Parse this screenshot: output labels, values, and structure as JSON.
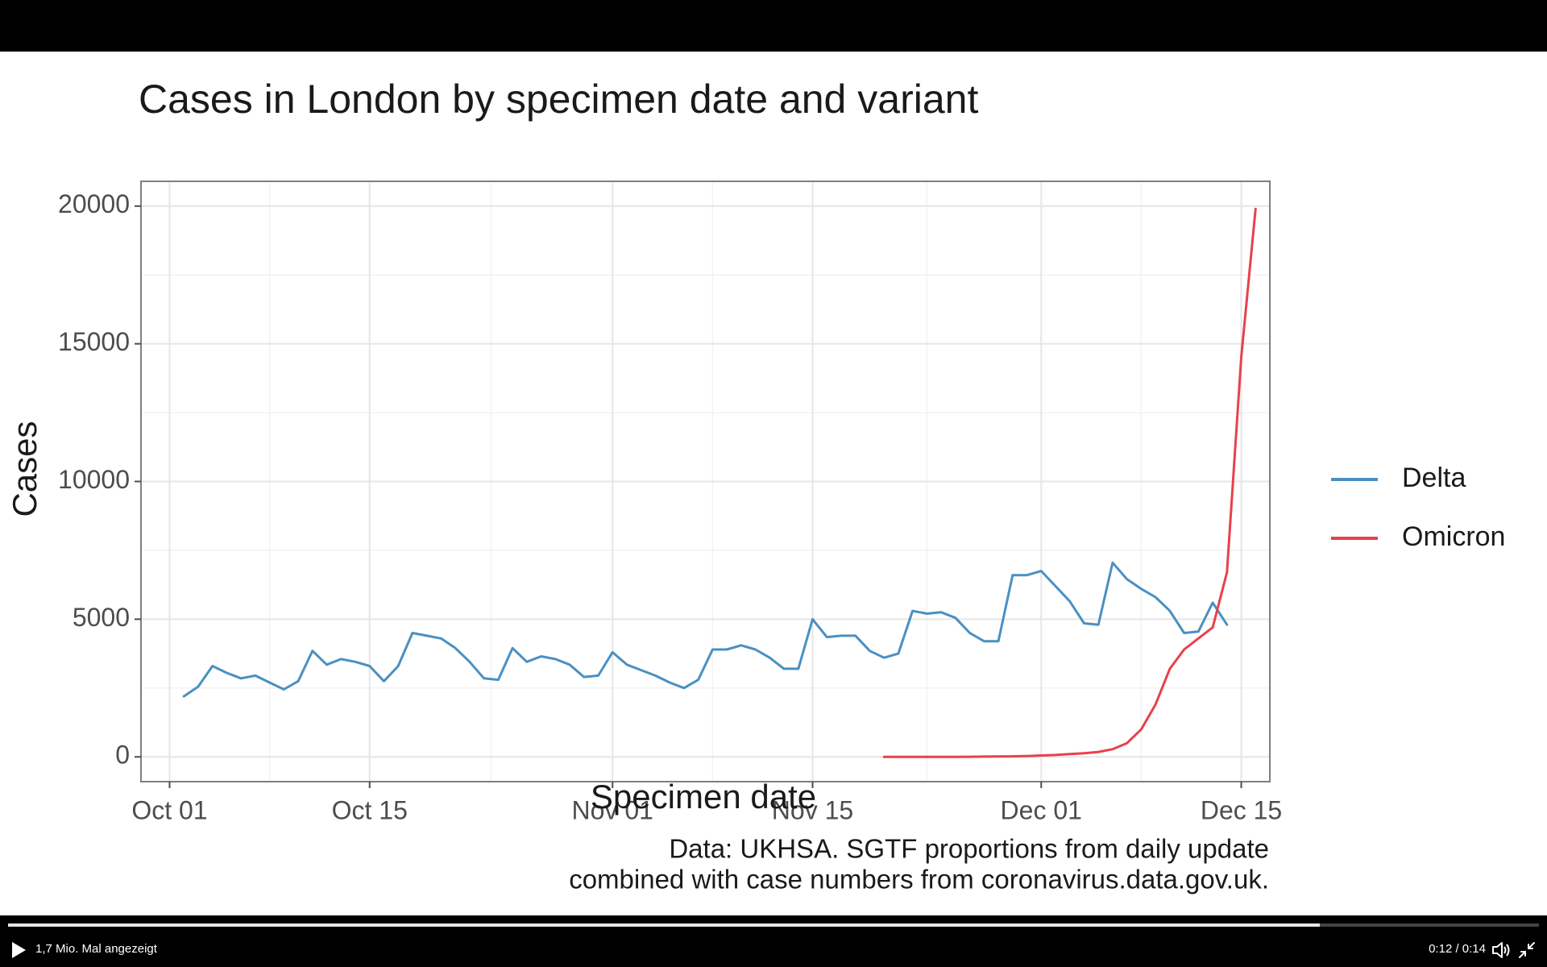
{
  "player": {
    "view_count_label": "1,7 Mio. Mal angezeigt",
    "time_label": "0:12 / 0:14",
    "progress": 0.857,
    "icons": [
      "play-icon",
      "volume-icon",
      "exit-fullscreen-icon"
    ]
  },
  "chart_data": {
    "type": "line",
    "title": "Cases in London by specimen date and variant",
    "xlabel": "Specimen date",
    "ylabel": "Cases",
    "caption": [
      "Data: UKHSA. SGTF proportions from daily update",
      "combined with case numbers from coronavirus.data.gov.uk."
    ],
    "x_start": "2021-10-02",
    "xlim": [
      "2021-09-29",
      "2021-12-17"
    ],
    "ylim": [
      -900,
      20900
    ],
    "x_ticks": [
      {
        "date": "2021-10-01",
        "label": "Oct 01"
      },
      {
        "date": "2021-10-15",
        "label": "Oct 15"
      },
      {
        "date": "2021-11-01",
        "label": "Nov 01"
      },
      {
        "date": "2021-11-15",
        "label": "Nov 15"
      },
      {
        "date": "2021-12-01",
        "label": "Dec 01"
      },
      {
        "date": "2021-12-15",
        "label": "Dec 15"
      }
    ],
    "y_ticks": [
      0,
      5000,
      10000,
      15000,
      20000
    ],
    "grid": true,
    "legend_position": "right",
    "series": [
      {
        "name": "Delta",
        "color": "#4a90c2",
        "start": "2021-10-02",
        "values": [
          2200,
          2550,
          3300,
          3050,
          2850,
          2950,
          2700,
          2450,
          2750,
          3850,
          3350,
          3550,
          3450,
          3300,
          2750,
          3300,
          4500,
          4400,
          4300,
          3950,
          3450,
          2850,
          2800,
          3950,
          3450,
          3650,
          3550,
          3350,
          2900,
          2950,
          3800,
          3350,
          3150,
          2950,
          2700,
          2500,
          2800,
          3900,
          3900,
          4050,
          3900,
          3600,
          3200,
          3200,
          5000,
          4350,
          4400,
          4400,
          3850,
          3600,
          3750,
          5300,
          5200,
          5250,
          5050,
          4500,
          4200,
          4200,
          6600,
          6600,
          6750,
          6200,
          5650,
          4850,
          4800,
          7050,
          6450,
          6100,
          5800,
          5300,
          4500,
          4550,
          5600,
          4800
        ]
      },
      {
        "name": "Omicron",
        "color": "#e8414b",
        "start": "2021-11-20",
        "values": [
          0,
          0,
          0,
          0,
          0,
          0,
          5,
          10,
          15,
          20,
          30,
          50,
          70,
          100,
          130,
          180,
          280,
          500,
          1000,
          1900,
          3200,
          3900,
          4300,
          4700,
          6700,
          14500,
          19900
        ]
      }
    ]
  }
}
